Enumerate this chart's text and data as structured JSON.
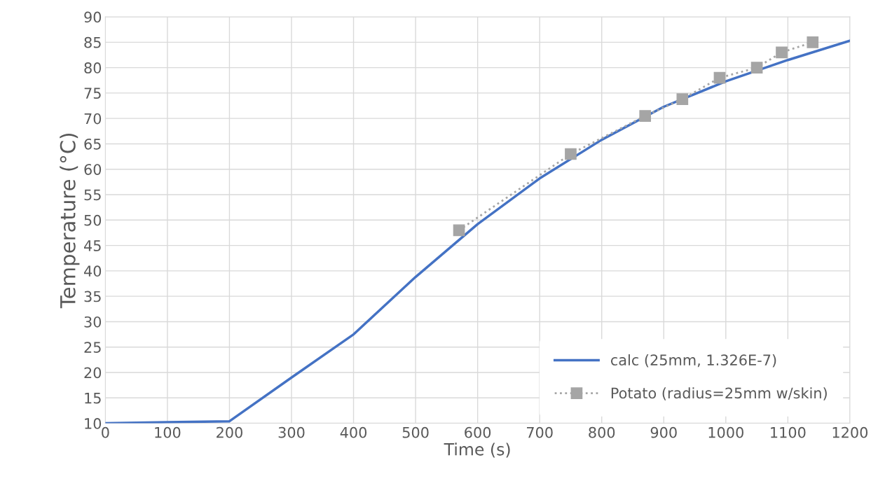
{
  "chart_data": {
    "type": "line",
    "xlabel": "Time (s)",
    "ylabel": "Temperature (°C)",
    "xlim": [
      0,
      1200
    ],
    "xticks": [
      0,
      100,
      200,
      300,
      400,
      500,
      600,
      700,
      800,
      900,
      1000,
      1100,
      1200
    ],
    "ylim": [
      10,
      90
    ],
    "yticks": [
      10,
      15,
      20,
      25,
      30,
      35,
      40,
      45,
      50,
      55,
      60,
      65,
      70,
      75,
      80,
      85,
      90
    ],
    "grid": true,
    "legend": "bottom right",
    "series": [
      {
        "name": "calc (25mm, 1.326E-7)",
        "color": "#4472c4",
        "marker": "none",
        "line_style": "solid",
        "x": [
          0,
          100,
          200,
          300,
          400,
          500,
          600,
          700,
          800,
          900,
          1000,
          1100,
          1200
        ],
        "values": [
          10,
          10.2,
          10.4,
          19,
          27.5,
          38.8,
          49.2,
          58.2,
          65.8,
          72.3,
          77.3,
          81.5,
          85.3
        ]
      },
      {
        "name": "Potato (radius=25mm w/skin)",
        "color": "#a5a5a5",
        "marker": "square",
        "line_style": "dotted",
        "x": [
          570,
          750,
          870,
          930,
          990,
          1050,
          1090,
          1140
        ],
        "values": [
          48,
          63,
          70.5,
          73.8,
          78,
          80,
          83,
          85
        ]
      }
    ]
  }
}
